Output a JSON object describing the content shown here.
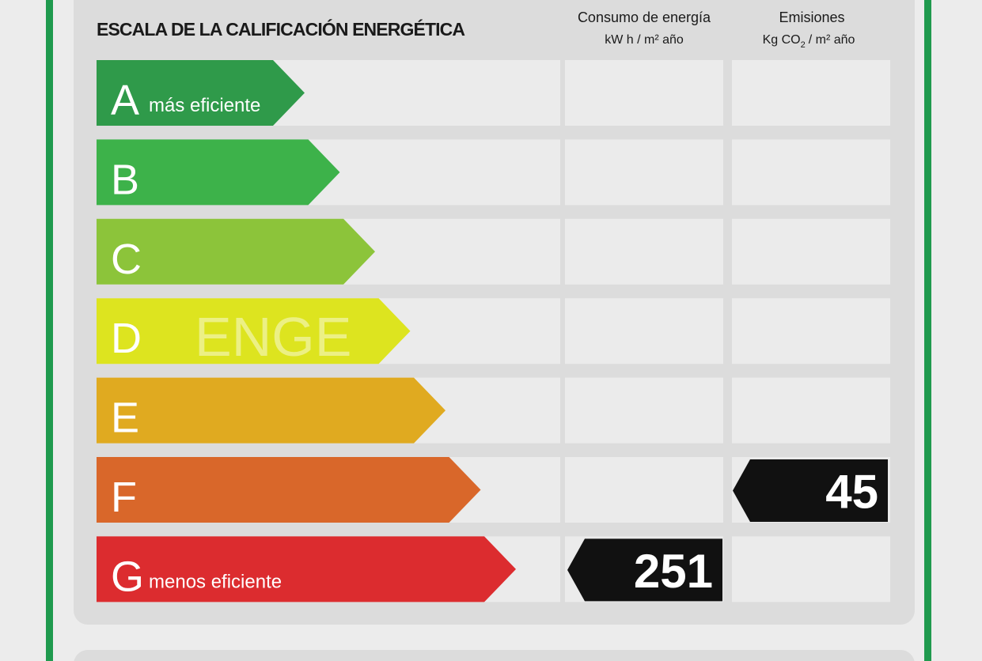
{
  "header": {
    "title": "ESCALA DE LA CALIFICACIÓN ENERGÉTICA",
    "consumption": {
      "label": "Consumo de energía",
      "unit": "kW h / m² año"
    },
    "emissions": {
      "label": "Emisiones",
      "unit_prefix": "Kg CO",
      "unit_sub": "2",
      "unit_suffix": "/ m² año"
    }
  },
  "ratings": [
    {
      "letter": "A",
      "note": "más eficiente",
      "color": "#2f9a4a"
    },
    {
      "letter": "B",
      "color": "#3db24a"
    },
    {
      "letter": "C",
      "color": "#8cc43a"
    },
    {
      "letter": "D",
      "color": "#dde41f"
    },
    {
      "letter": "E",
      "color": "#e0aa20"
    },
    {
      "letter": "F",
      "color": "#d9672a"
    },
    {
      "letter": "G",
      "note": "menos eficiente",
      "color": "#dc2c2f"
    }
  ],
  "consumption": {
    "rating": "G",
    "value": 251
  },
  "emissions": {
    "rating": "F",
    "value": 45
  },
  "watermark": "ENGE"
}
